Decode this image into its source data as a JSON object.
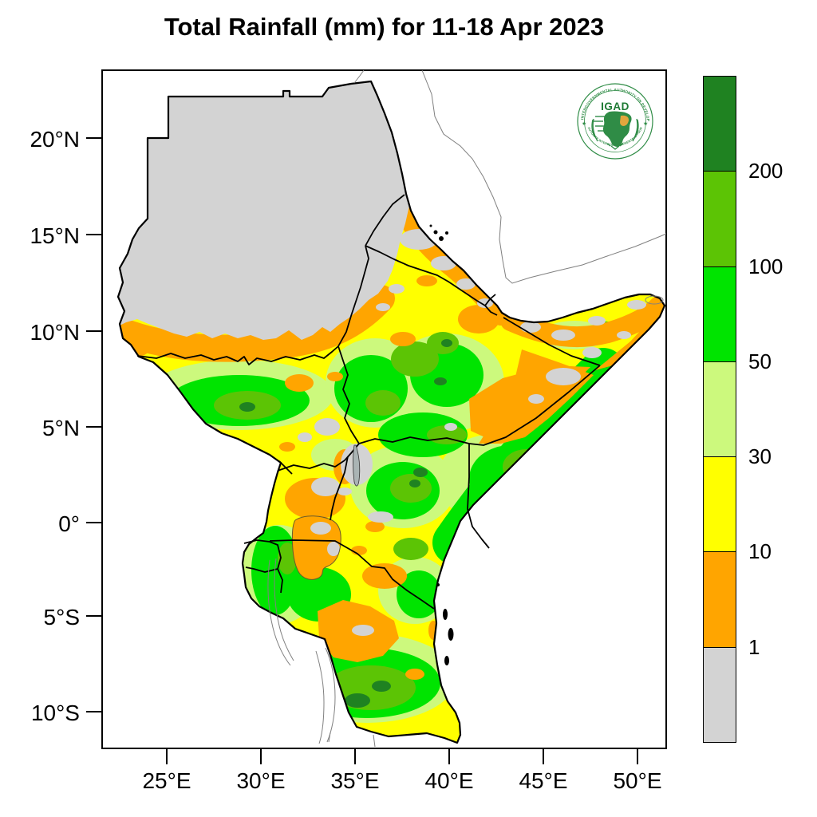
{
  "title": "Total Rainfall (mm) for 11-18 Apr 2023",
  "axes": {
    "y_ticks": [
      "20°N",
      "15°N",
      "10°N",
      "5°N",
      "0°",
      "5°S",
      "10°S"
    ],
    "x_ticks": [
      "25°E",
      "30°E",
      "35°E",
      "40°E",
      "45°E",
      "50°E"
    ]
  },
  "palette": {
    "gray": "#D3D3D3",
    "orange": "#FFA500",
    "yellow": "#FFFF00",
    "pale_green": "#CCF97D",
    "green": "#00E400",
    "medium_green": "#5CC405",
    "dark_green": "#1F8221"
  },
  "colorbar": {
    "tick_labels": [
      "200",
      "100",
      "50",
      "30",
      "10",
      "1"
    ],
    "segments": [
      {
        "range": "> 200 mm",
        "color": "#1F8221"
      },
      {
        "range": "100-200 mm",
        "color": "#5CC405"
      },
      {
        "range": "50-100 mm",
        "color": "#00E400"
      },
      {
        "range": "30-50 mm",
        "color": "#CCF97D"
      },
      {
        "range": "10-30 mm",
        "color": "#FFFF00"
      },
      {
        "range": "1-10 mm",
        "color": "#FFA500"
      },
      {
        "range": "< 1 mm",
        "color": "#D3D3D3"
      }
    ]
  },
  "logo": {
    "acronym": "IGAD",
    "arc_top": "INTERGOVERNMENTAL AUTHORITY ON DEVELOPMENT",
    "arc_bottom": "AUTORITE INTERGOUVERNEMENTALE POUR LE DEVELOPPEMENT",
    "star_left": "★",
    "star_right": "★"
  },
  "map_legend": {
    "type": "map",
    "variable": "Total Rainfall",
    "units": "mm",
    "period": "11-18 Apr 2023",
    "region": "Greater Horn of Africa (IGAD region)",
    "lon_ticks_deg_east": [
      25,
      30,
      35,
      40,
      45,
      50
    ],
    "lat_ticks_deg": [
      20,
      15,
      10,
      5,
      0,
      -5,
      -10
    ],
    "bins_mm": [
      1,
      10,
      30,
      50,
      100,
      200
    ],
    "pattern_summary": [
      "Northern Sudan mostly below 1 mm (gray)",
      "Orange 1-10 mm band across central Sudan and coastal Eritrea, northern and central Somalia",
      "Yellow 10-30 mm over much of Ethiopia, Uganda and central Tanzania",
      "Green 50-200 mm cores over South Sudan, SW/central Ethiopia, central Kenya, southern Somalia coast, Rwanda-Burundi and southern Tanzania",
      "Small dark-green spots above 200 mm in southern Tanzania, central Kenya and Ethiopia"
    ]
  }
}
